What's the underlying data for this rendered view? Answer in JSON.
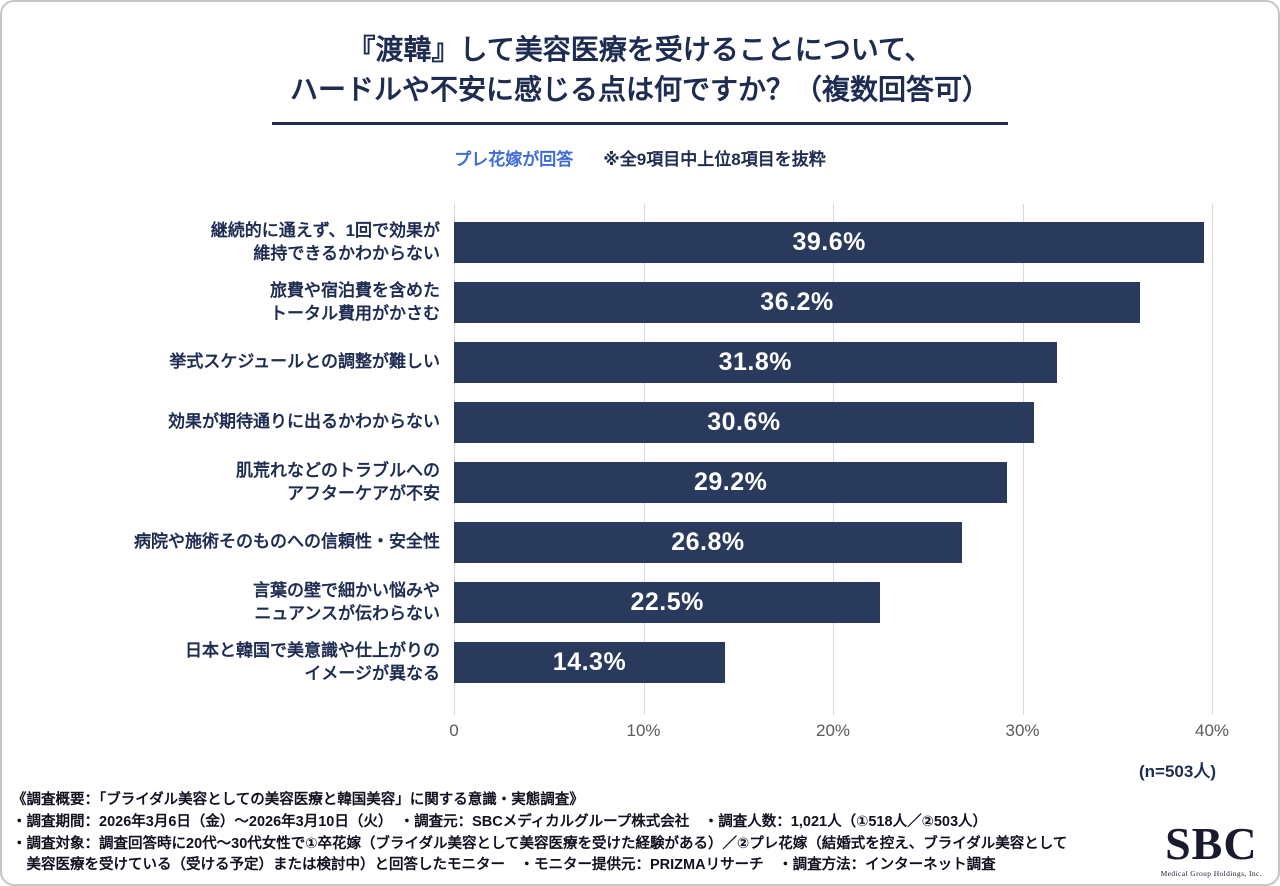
{
  "colors": {
    "bar": "#293a5d",
    "title_navy": "#1f2c52",
    "legend_blue": "#3e6bd6",
    "gridline": "#d9d9d9"
  },
  "header": {
    "title": "『渡韓』して美容医療を受けることについて、\nハードルや不安に感じる点は何ですか？（複数回答可）",
    "legend_respondent": "プレ花嫁が回答",
    "legend_note": "※全9項目中上位8項目を抜粋"
  },
  "chart_data": {
    "type": "bar",
    "orientation": "horizontal",
    "title": "『渡韓』して美容医療を受けることについて、ハードルや不安に感じる点は何ですか？（複数回答可）",
    "categories": [
      "継続的に通えず、1回で効果が\n維持できるかわからない",
      "旅費や宿泊費を含めた\nトータル費用がかさむ",
      "挙式スケジュールとの調整が難しい",
      "効果が期待通りに出るかわからない",
      "肌荒れなどのトラブルへの\nアフターケアが不安",
      "病院や施術そのものへの信頼性・安全性",
      "言葉の壁で細かい悩みや\nニュアンスが伝わらない",
      "日本と韓国で美意識や仕上がりの\nイメージが異なる"
    ],
    "values": [
      39.6,
      36.2,
      31.8,
      30.6,
      29.2,
      26.8,
      22.5,
      14.3
    ],
    "value_labels": [
      "39.6%",
      "36.2%",
      "31.8%",
      "30.6%",
      "29.2%",
      "26.8%",
      "22.5%",
      "14.3%"
    ],
    "xlim": [
      0,
      40
    ],
    "x_ticks": [
      "0",
      "10%",
      "20%",
      "30%",
      "40%"
    ],
    "grid": "vertical",
    "legend_position": "top",
    "sample_size": "(n=503人)"
  },
  "footer": {
    "lines": [
      "《調査概要：「ブライダル美容としての美容医療と韓国美容」に関する意識・実態調査》",
      "・調査期間：2026年3月6日（金）～2026年3月10日（火）　・調査元：SBCメディカルグループ株式会社　・調査人数：1,021人（①518人／②503人）",
      "・調査対象：調査回答時に20代～30代女性で①卒花嫁（ブライダル美容として美容医療を受けた経験がある）／②プレ花嫁（結婚式を控え、ブライダル美容として",
      "　美容医療を受けている（受ける予定）または検討中）と回答したモニター　・モニター提供元：PRIZMAリサーチ　・調査方法：インターネット調査"
    ]
  },
  "logo": {
    "text": "SBC",
    "caption": "Medical Group Holdings, Inc."
  }
}
